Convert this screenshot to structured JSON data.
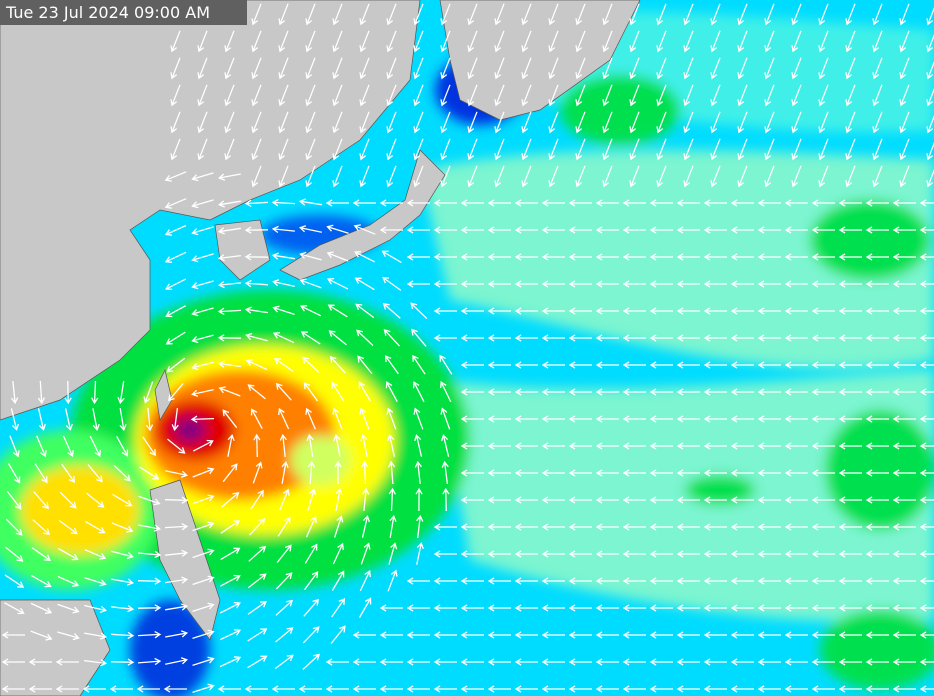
{
  "timestamp": "Tue 23 Jul 2024 09:00 AM"
}
